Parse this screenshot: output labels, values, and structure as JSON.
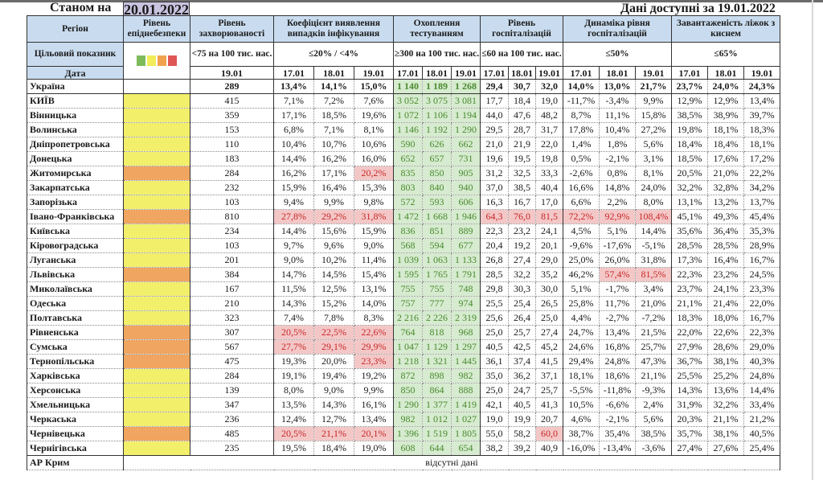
{
  "header": {
    "as_of_label": "Станом на",
    "as_of_date": "20.01.2022",
    "available_label": "Дані доступні за  19.01.2022"
  },
  "columns": {
    "region": "Регіон",
    "level": "Рівень епіднебезпеки",
    "incidence": "Рівень захворюваності",
    "detection": "Коефіцієнт виявлення випадків інфікування",
    "testing": "Охоплення тестуванням",
    "hospitalization": "Рівень госпіталізацій",
    "hosp_dynamics": "Динаміка рівня госпіталізацій",
    "oxygen_beds": "Завантаженість ліжок з киснем"
  },
  "target_row": {
    "label": "Цільовий показник",
    "legend_colors": [
      "#7dbb5a",
      "#f0ec5a",
      "#f2a24e",
      "#e05656"
    ],
    "incidence": "<75 на 100 тис. нас.",
    "detection": "≤20% / <4%",
    "testing": "≥300 на 100 тис. нас.",
    "hospitalization": "≤60 на 100 тис. нас.",
    "hosp_dynamics": "≤50%",
    "oxygen_beds": "≤65%"
  },
  "date_row": {
    "label": "Дата",
    "incidence_date": "19.01",
    "dates": [
      "17.01",
      "18.01",
      "19.01"
    ]
  },
  "colors": {
    "header_bg": "#c9dcef",
    "level_yellow": "#f2ef6b",
    "level_orange": "#f0a560",
    "test_bg": "#d6ebcf",
    "red_bg": "#f4c7c7"
  },
  "rows": [
    {
      "region": "Україна",
      "level": "",
      "incidence": "289",
      "detection": [
        "13,4%",
        "14,1%",
        "15,0%"
      ],
      "testing": [
        "1 140",
        "1 189",
        "1 268"
      ],
      "hosp": [
        "29,4",
        "30,7",
        "32,0"
      ],
      "dyn": [
        "14,0%",
        "13,0%",
        "21,7%"
      ],
      "beds": [
        "23,7%",
        "24,0%",
        "24,3%"
      ],
      "red": []
    },
    {
      "region": "КИЇВ",
      "level": "yellow",
      "incidence": "415",
      "detection": [
        "7,1%",
        "7,2%",
        "7,6%"
      ],
      "testing": [
        "3 052",
        "3 075",
        "3 081"
      ],
      "hosp": [
        "17,7",
        "18,4",
        "19,0"
      ],
      "dyn": [
        "-11,7%",
        "-3,4%",
        "9,9%"
      ],
      "beds": [
        "12,9%",
        "12,9%",
        "13,4%"
      ],
      "red": []
    },
    {
      "region": "Вінницька",
      "level": "yellow",
      "incidence": "359",
      "detection": [
        "17,1%",
        "18,5%",
        "19,6%"
      ],
      "testing": [
        "1 072",
        "1 106",
        "1 194"
      ],
      "hosp": [
        "44,0",
        "47,6",
        "48,2"
      ],
      "dyn": [
        "8,7%",
        "11,1%",
        "15,8%"
      ],
      "beds": [
        "38,5%",
        "38,9%",
        "39,7%"
      ],
      "red": []
    },
    {
      "region": "Волинська",
      "level": "yellow",
      "incidence": "153",
      "detection": [
        "6,8%",
        "7,1%",
        "8,1%"
      ],
      "testing": [
        "1 146",
        "1 192",
        "1 290"
      ],
      "hosp": [
        "29,5",
        "28,7",
        "31,7"
      ],
      "dyn": [
        "17,8%",
        "10,4%",
        "27,2%"
      ],
      "beds": [
        "19,8%",
        "18,1%",
        "18,3%"
      ],
      "red": []
    },
    {
      "region": "Дніпропетровська",
      "level": "yellow",
      "incidence": "110",
      "detection": [
        "10,4%",
        "10,7%",
        "10,6%"
      ],
      "testing": [
        "590",
        "626",
        "662"
      ],
      "hosp": [
        "21,0",
        "21,9",
        "22,0"
      ],
      "dyn": [
        "1,4%",
        "1,8%",
        "5,6%"
      ],
      "beds": [
        "18,4%",
        "18,4%",
        "18,1%"
      ],
      "red": []
    },
    {
      "region": "Донецька",
      "level": "yellow",
      "incidence": "183",
      "detection": [
        "14,4%",
        "16,2%",
        "16,0%"
      ],
      "testing": [
        "652",
        "657",
        "731"
      ],
      "hosp": [
        "19,6",
        "19,5",
        "19,8"
      ],
      "dyn": [
        "0,5%",
        "-2,1%",
        "3,1%"
      ],
      "beds": [
        "18,5%",
        "17,6%",
        "17,2%"
      ],
      "red": []
    },
    {
      "region": "Житомирська",
      "level": "orange",
      "incidence": "284",
      "detection": [
        "16,2%",
        "17,1%",
        "20,2%"
      ],
      "testing": [
        "835",
        "850",
        "905"
      ],
      "hosp": [
        "31,2",
        "32,5",
        "33,3"
      ],
      "dyn": [
        "-2,6%",
        "0,8%",
        "8,1%"
      ],
      "beds": [
        "20,5%",
        "21,0%",
        "22,2%"
      ],
      "red": [
        "det2"
      ]
    },
    {
      "region": "Закарпатська",
      "level": "yellow",
      "incidence": "232",
      "detection": [
        "15,9%",
        "16,4%",
        "15,3%"
      ],
      "testing": [
        "803",
        "840",
        "940"
      ],
      "hosp": [
        "37,0",
        "38,5",
        "40,4"
      ],
      "dyn": [
        "16,6%",
        "14,8%",
        "24,0%"
      ],
      "beds": [
        "32,2%",
        "32,8%",
        "34,2%"
      ],
      "red": []
    },
    {
      "region": "Запорізька",
      "level": "yellow",
      "incidence": "103",
      "detection": [
        "9,4%",
        "9,9%",
        "9,8%"
      ],
      "testing": [
        "572",
        "593",
        "606"
      ],
      "hosp": [
        "16,3",
        "16,7",
        "17,0"
      ],
      "dyn": [
        "6,6%",
        "2,2%",
        "8,0%"
      ],
      "beds": [
        "13,1%",
        "13,2%",
        "13,7%"
      ],
      "red": []
    },
    {
      "region": "Івано-Франківська",
      "level": "orange",
      "incidence": "810",
      "detection": [
        "27,8%",
        "29,2%",
        "31,8%"
      ],
      "testing": [
        "1 472",
        "1 668",
        "1 946"
      ],
      "hosp": [
        "64,3",
        "76,0",
        "81,5"
      ],
      "dyn": [
        "72,2%",
        "92,9%",
        "108,4%"
      ],
      "beds": [
        "45,1%",
        "49,3%",
        "45,4%"
      ],
      "red": [
        "det0",
        "det1",
        "det2",
        "hosp0",
        "hosp1",
        "hosp2",
        "dyn0",
        "dyn1",
        "dyn2"
      ]
    },
    {
      "region": "Київська",
      "level": "yellow",
      "incidence": "234",
      "detection": [
        "14,4%",
        "15,6%",
        "15,9%"
      ],
      "testing": [
        "836",
        "851",
        "889"
      ],
      "hosp": [
        "22,3",
        "23,2",
        "24,1"
      ],
      "dyn": [
        "4,5%",
        "5,1%",
        "14,4%"
      ],
      "beds": [
        "35,6%",
        "36,4%",
        "35,3%"
      ],
      "red": []
    },
    {
      "region": "Кіровоградська",
      "level": "yellow",
      "incidence": "103",
      "detection": [
        "9,7%",
        "9,6%",
        "9,0%"
      ],
      "testing": [
        "568",
        "594",
        "677"
      ],
      "hosp": [
        "20,4",
        "19,2",
        "20,1"
      ],
      "dyn": [
        "-9,6%",
        "-17,6%",
        "-5,1%"
      ],
      "beds": [
        "28,5%",
        "28,5%",
        "28,9%"
      ],
      "red": []
    },
    {
      "region": "Луганська",
      "level": "yellow",
      "incidence": "201",
      "detection": [
        "9,0%",
        "10,2%",
        "11,4%"
      ],
      "testing": [
        "1 039",
        "1 063",
        "1 133"
      ],
      "hosp": [
        "26,8",
        "27,4",
        "29,0"
      ],
      "dyn": [
        "25,0%",
        "26,0%",
        "31,8%"
      ],
      "beds": [
        "17,3%",
        "16,4%",
        "16,7%"
      ],
      "red": []
    },
    {
      "region": "Львівська",
      "level": "orange",
      "incidence": "384",
      "detection": [
        "14,7%",
        "14,5%",
        "15,4%"
      ],
      "testing": [
        "1 595",
        "1 765",
        "1 791"
      ],
      "hosp": [
        "28,5",
        "32,2",
        "35,2"
      ],
      "dyn": [
        "46,2%",
        "57,4%",
        "81,5%"
      ],
      "beds": [
        "22,3%",
        "23,2%",
        "24,5%"
      ],
      "red": [
        "dyn1",
        "dyn2"
      ]
    },
    {
      "region": "Миколаївська",
      "level": "yellow",
      "incidence": "167",
      "detection": [
        "11,5%",
        "12,5%",
        "13,1%"
      ],
      "testing": [
        "755",
        "755",
        "748"
      ],
      "hosp": [
        "29,8",
        "30,3",
        "30,0"
      ],
      "dyn": [
        "5,1%",
        "-1,7%",
        "3,4%"
      ],
      "beds": [
        "23,7%",
        "24,1%",
        "23,3%"
      ],
      "red": []
    },
    {
      "region": "Одеська",
      "level": "yellow",
      "incidence": "210",
      "detection": [
        "14,3%",
        "15,2%",
        "14,0%"
      ],
      "testing": [
        "757",
        "777",
        "974"
      ],
      "hosp": [
        "25,5",
        "25,4",
        "26,5"
      ],
      "dyn": [
        "25,8%",
        "11,7%",
        "21,0%"
      ],
      "beds": [
        "21,1%",
        "21,4%",
        "22,0%"
      ],
      "red": []
    },
    {
      "region": "Полтавська",
      "level": "yellow",
      "incidence": "323",
      "detection": [
        "7,4%",
        "7,8%",
        "8,3%"
      ],
      "testing": [
        "2 216",
        "2 226",
        "2 319"
      ],
      "hosp": [
        "25,6",
        "26,4",
        "25,0"
      ],
      "dyn": [
        "4,4%",
        "-2,7%",
        "-7,2%"
      ],
      "beds": [
        "18,3%",
        "18,0%",
        "16,7%"
      ],
      "red": []
    },
    {
      "region": "Рівненська",
      "level": "orange",
      "incidence": "307",
      "detection": [
        "20,5%",
        "22,5%",
        "22,6%"
      ],
      "testing": [
        "764",
        "818",
        "968"
      ],
      "hosp": [
        "25,0",
        "25,7",
        "27,4"
      ],
      "dyn": [
        "24,7%",
        "13,4%",
        "21,5%"
      ],
      "beds": [
        "22,0%",
        "22,6%",
        "22,3%"
      ],
      "red": [
        "det0",
        "det1",
        "det2"
      ]
    },
    {
      "region": "Сумська",
      "level": "orange",
      "incidence": "567",
      "detection": [
        "27,7%",
        "29,1%",
        "29,9%"
      ],
      "testing": [
        "1 047",
        "1 129",
        "1 297"
      ],
      "hosp": [
        "40,5",
        "42,5",
        "45,2"
      ],
      "dyn": [
        "24,6%",
        "16,8%",
        "25,7%"
      ],
      "beds": [
        "27,9%",
        "28,6%",
        "29,0%"
      ],
      "red": [
        "det0",
        "det1",
        "det2"
      ]
    },
    {
      "region": "Тернопільська",
      "level": "orange",
      "incidence": "475",
      "detection": [
        "19,3%",
        "20,0%",
        "23,3%"
      ],
      "testing": [
        "1 218",
        "1 321",
        "1 445"
      ],
      "hosp": [
        "36,1",
        "37,4",
        "41,5"
      ],
      "dyn": [
        "29,4%",
        "24,8%",
        "47,3%"
      ],
      "beds": [
        "36,7%",
        "38,1%",
        "40,3%"
      ],
      "red": [
        "det2"
      ]
    },
    {
      "region": "Харківська",
      "level": "yellow",
      "incidence": "284",
      "detection": [
        "19,1%",
        "19,4%",
        "19,2%"
      ],
      "testing": [
        "872",
        "898",
        "982"
      ],
      "hosp": [
        "35,0",
        "36,2",
        "37,1"
      ],
      "dyn": [
        "18,1%",
        "18,6%",
        "21,1%"
      ],
      "beds": [
        "25,5%",
        "25,2%",
        "24,8%"
      ],
      "red": []
    },
    {
      "region": "Херсонська",
      "level": "yellow",
      "incidence": "139",
      "detection": [
        "8,0%",
        "9,0%",
        "9,9%"
      ],
      "testing": [
        "850",
        "864",
        "888"
      ],
      "hosp": [
        "25,0",
        "24,7",
        "25,7"
      ],
      "dyn": [
        "-5,5%",
        "-11,8%",
        "-9,3%"
      ],
      "beds": [
        "14,3%",
        "13,6%",
        "14,4%"
      ],
      "red": []
    },
    {
      "region": "Хмельницька",
      "level": "yellow",
      "incidence": "347",
      "detection": [
        "13,5%",
        "14,3%",
        "16,1%"
      ],
      "testing": [
        "1 290",
        "1 377",
        "1 419"
      ],
      "hosp": [
        "42,1",
        "40,5",
        "41,3"
      ],
      "dyn": [
        "10,5%",
        "-6,6%",
        "2,4%"
      ],
      "beds": [
        "31,9%",
        "32,2%",
        "33,4%"
      ],
      "red": []
    },
    {
      "region": "Черкаська",
      "level": "yellow",
      "incidence": "236",
      "detection": [
        "12,4%",
        "12,7%",
        "13,4%"
      ],
      "testing": [
        "982",
        "1 012",
        "1 027"
      ],
      "hosp": [
        "19,0",
        "19,9",
        "20,7"
      ],
      "dyn": [
        "4,6%",
        "-2,1%",
        "5,6%"
      ],
      "beds": [
        "20,3%",
        "21,1%",
        "21,2%"
      ],
      "red": []
    },
    {
      "region": "Чернівецька",
      "level": "orange",
      "incidence": "485",
      "detection": [
        "20,5%",
        "21,1%",
        "20,1%"
      ],
      "testing": [
        "1 396",
        "1 519",
        "1 805"
      ],
      "hosp": [
        "55,0",
        "58,2",
        "60,0"
      ],
      "dyn": [
        "38,7%",
        "35,4%",
        "38,5%"
      ],
      "beds": [
        "35,7%",
        "38,1%",
        "40,5%"
      ],
      "red": [
        "det0",
        "det1",
        "det2",
        "hosp2"
      ]
    },
    {
      "region": "Чернігівська",
      "level": "yellow",
      "incidence": "235",
      "detection": [
        "19,5%",
        "18,4%",
        "19,0%"
      ],
      "testing": [
        "608",
        "644",
        "654"
      ],
      "hosp": [
        "38,2",
        "39,2",
        "40,9"
      ],
      "dyn": [
        "-16,0%",
        "-13,4%",
        "-3,6%"
      ],
      "beds": [
        "27,4%",
        "27,6%",
        "25,4%"
      ],
      "red": []
    }
  ],
  "no_data_rows": [
    {
      "region": "АР Крим",
      "note": "відсутні дані"
    }
  ]
}
